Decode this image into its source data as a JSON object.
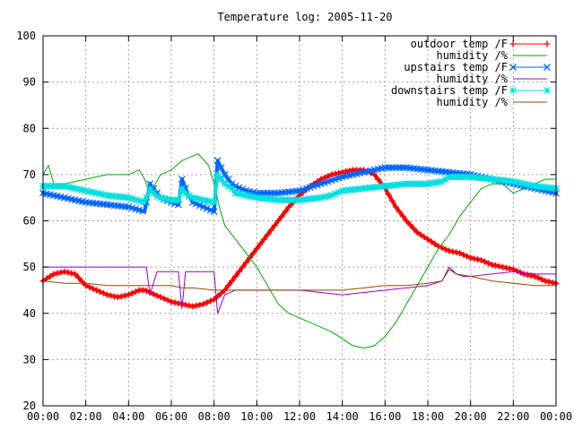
{
  "chart_data": {
    "type": "line",
    "title": "Temperature log: 2005-11-20",
    "xlabel": "",
    "ylabel": "",
    "xlim": [
      "00:00",
      "24:00"
    ],
    "ylim": [
      20,
      100
    ],
    "x_tick_labels": [
      "00:00",
      "02:00",
      "04:00",
      "06:00",
      "08:00",
      "10:00",
      "12:00",
      "14:00",
      "16:00",
      "18:00",
      "20:00",
      "22:00",
      "00:00"
    ],
    "y_ticks": [
      20,
      30,
      40,
      50,
      60,
      70,
      80,
      90,
      100
    ],
    "grid": true,
    "legend_position": "top-right",
    "series": [
      {
        "name": "outdoor temp /F",
        "color": "#ff0000",
        "marker": "plus",
        "x": [
          "00:00",
          "00:30",
          "01:00",
          "01:30",
          "02:00",
          "02:30",
          "03:00",
          "03:30",
          "04:00",
          "04:30",
          "04:45",
          "05:00",
          "05:15",
          "05:30",
          "06:00",
          "06:30",
          "07:00",
          "07:30",
          "08:00",
          "08:30",
          "09:00",
          "09:30",
          "10:00",
          "10:30",
          "11:00",
          "11:30",
          "12:00",
          "12:30",
          "13:00",
          "13:30",
          "14:00",
          "14:30",
          "15:00",
          "15:30",
          "16:00",
          "16:30",
          "17:00",
          "17:30",
          "18:00",
          "18:30",
          "19:00",
          "19:30",
          "20:00",
          "20:30",
          "21:00",
          "21:30",
          "22:00",
          "22:30",
          "23:00",
          "23:30",
          "24:00"
        ],
        "values": [
          47,
          48.5,
          49,
          48.5,
          46,
          45,
          44,
          43.5,
          44,
          45,
          45,
          44.5,
          44,
          43.5,
          42.5,
          42,
          41.5,
          42,
          43,
          45,
          48,
          51,
          54,
          57,
          60,
          63,
          65.5,
          67.5,
          69,
          70,
          70.5,
          71,
          71,
          70,
          67,
          63,
          60,
          57.5,
          56,
          54.5,
          53.5,
          53,
          52,
          51.5,
          50.5,
          50,
          49.5,
          48.5,
          48,
          47,
          46.5
        ]
      },
      {
        "name": "humidity /%",
        "color": "#00aa00",
        "marker": "none",
        "x": [
          "00:00",
          "00:15",
          "00:30",
          "01:00",
          "02:00",
          "03:00",
          "04:00",
          "04:30",
          "04:45",
          "05:00",
          "05:30",
          "06:00",
          "06:30",
          "07:00",
          "07:15",
          "07:45",
          "08:00",
          "08:15",
          "08:30",
          "09:00",
          "09:30",
          "10:00",
          "10:30",
          "11:00",
          "11:30",
          "12:00",
          "12:30",
          "13:00",
          "13:30",
          "14:00",
          "14:30",
          "15:00",
          "15:30",
          "16:00",
          "16:30",
          "17:00",
          "17:30",
          "18:00",
          "18:30",
          "19:00",
          "19:30",
          "20:00",
          "20:30",
          "21:00",
          "21:30",
          "22:00",
          "22:30",
          "23:00",
          "23:30",
          "24:00"
        ],
        "values": [
          70,
          72,
          68,
          68,
          69,
          70,
          70,
          71,
          69,
          66,
          70,
          71,
          73,
          74,
          74.5,
          72,
          68,
          63,
          59,
          56,
          53,
          50,
          46,
          42,
          40,
          39,
          38,
          37,
          36,
          34.5,
          33,
          32.5,
          33,
          35,
          38,
          42,
          46,
          50,
          54,
          57,
          61,
          64,
          67,
          68,
          68,
          66,
          67,
          68,
          69,
          69
        ]
      },
      {
        "name": "upstairs temp /F",
        "color": "#0066ff",
        "marker": "cross",
        "x": [
          "00:00",
          "01:00",
          "02:00",
          "03:00",
          "04:00",
          "04:45",
          "05:00",
          "05:15",
          "05:30",
          "06:00",
          "06:20",
          "06:30",
          "06:45",
          "07:00",
          "07:30",
          "08:00",
          "08:10",
          "08:30",
          "08:50",
          "09:00",
          "09:30",
          "10:00",
          "11:00",
          "12:00",
          "13:00",
          "14:00",
          "15:00",
          "16:00",
          "17:00",
          "18:00",
          "19:00",
          "20:00",
          "21:00",
          "22:00",
          "23:00",
          "24:00"
        ],
        "values": [
          66,
          65,
          64,
          63.5,
          63,
          62,
          68,
          66.5,
          65,
          64,
          63.5,
          69,
          66,
          64,
          63,
          62,
          73,
          70,
          68,
          67.5,
          66.5,
          66,
          66,
          66.5,
          68,
          69.5,
          70.5,
          71.5,
          71.5,
          71,
          70.5,
          70,
          69,
          68,
          67,
          66
        ]
      },
      {
        "name": "humidity /%",
        "color": "#9900cc",
        "marker": "none",
        "x": [
          "00:00",
          "01:00",
          "02:00",
          "03:00",
          "04:00",
          "04:50",
          "05:00",
          "05:20",
          "05:40",
          "06:00",
          "06:20",
          "06:30",
          "06:40",
          "06:50",
          "07:00",
          "07:30",
          "08:00",
          "08:10",
          "08:30",
          "09:00",
          "10:00",
          "11:00",
          "12:00",
          "13:00",
          "14:00",
          "15:00",
          "16:00",
          "17:00",
          "18:00",
          "18:40",
          "19:00",
          "19:20",
          "19:40",
          "20:00",
          "21:00",
          "22:00",
          "23:00",
          "24:00"
        ],
        "values": [
          50,
          50,
          50,
          50,
          50,
          50,
          44,
          49,
          49,
          49,
          49,
          41,
          49,
          49,
          49,
          49,
          49,
          40,
          44,
          45,
          45,
          45,
          45,
          44.5,
          44,
          44.5,
          45,
          45.5,
          46,
          47,
          50,
          48.5,
          48,
          48,
          48.5,
          49,
          48.5,
          48.5
        ]
      },
      {
        "name": "downstairs temp /F",
        "color": "#00e0e0",
        "marker": "star",
        "x": [
          "00:00",
          "01:00",
          "02:00",
          "03:00",
          "04:00",
          "04:45",
          "05:00",
          "05:15",
          "05:30",
          "06:00",
          "06:20",
          "06:30",
          "06:45",
          "07:00",
          "07:30",
          "08:00",
          "08:10",
          "08:30",
          "08:50",
          "09:00",
          "10:00",
          "11:00",
          "12:00",
          "13:00",
          "13:30",
          "14:00",
          "15:00",
          "16:00",
          "17:00",
          "18:00",
          "18:40",
          "19:00",
          "20:00",
          "21:00",
          "22:00",
          "23:00",
          "24:00"
        ],
        "values": [
          67.5,
          67.5,
          66.5,
          65.5,
          65,
          64,
          67,
          65.5,
          65,
          64.5,
          64.5,
          67,
          65.5,
          65,
          64.5,
          64,
          70,
          68,
          67,
          66,
          65,
          64.5,
          64.5,
          65,
          65.5,
          66.5,
          67,
          67.5,
          68,
          68,
          68.5,
          69.5,
          69.5,
          69,
          68.5,
          67.5,
          67
        ]
      },
      {
        "name": "humidity /%",
        "color": "#994400",
        "marker": "none",
        "x": [
          "00:00",
          "01:00",
          "02:00",
          "03:00",
          "04:00",
          "05:00",
          "06:00",
          "06:30",
          "07:00",
          "08:00",
          "09:00",
          "10:00",
          "11:00",
          "12:00",
          "13:00",
          "14:00",
          "15:00",
          "16:00",
          "17:00",
          "18:00",
          "18:40",
          "19:00",
          "19:20",
          "20:00",
          "21:00",
          "22:00",
          "23:00",
          "24:00"
        ],
        "values": [
          47,
          46.5,
          46.5,
          46,
          46,
          46,
          46,
          45.5,
          45.5,
          45,
          45,
          45,
          45,
          45,
          45,
          45,
          45.5,
          46,
          46,
          46.5,
          47,
          49.5,
          48.5,
          48,
          47,
          46.5,
          46,
          46
        ]
      }
    ]
  }
}
